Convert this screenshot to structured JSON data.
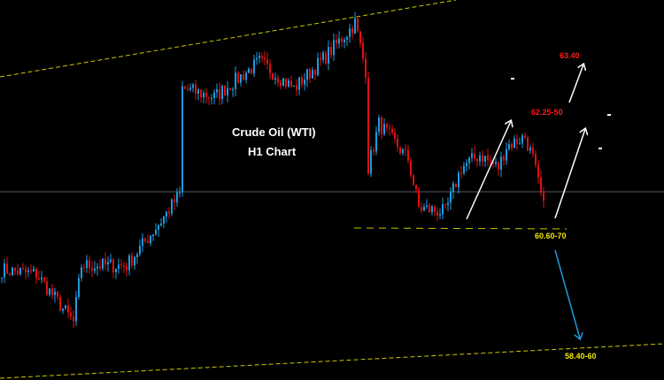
{
  "chart_data": {
    "type": "candlestick",
    "title": "Crude Oil (WTI)",
    "subtitle": "H1 Chart",
    "colors": {
      "up": "#1e9be0",
      "down": "#e01010",
      "background": "#000000",
      "channel": "#c8c800",
      "target_up": "#ffffff",
      "target_down": "#1e9be0",
      "label_up": "#ff1a1a",
      "label_support": "#f0e600"
    },
    "approx_close_path": [
      [
        0,
        59.99
      ],
      [
        13,
        59.92
      ],
      [
        27,
        59.14
      ],
      [
        30,
        60.06
      ],
      [
        47,
        60.06
      ],
      [
        60,
        60.78
      ],
      [
        67,
        61.21
      ],
      [
        68,
        62.92
      ],
      [
        80,
        62.78
      ],
      [
        97,
        63.35
      ],
      [
        110,
        62.92
      ],
      [
        120,
        63.35
      ],
      [
        132,
        63.92
      ],
      [
        133,
        63.99
      ],
      [
        137,
        63.21
      ],
      [
        138,
        61.64
      ],
      [
        142,
        62.35
      ],
      [
        153,
        61.78
      ],
      [
        157,
        60.99
      ],
      [
        167,
        60.92
      ],
      [
        173,
        61.64
      ],
      [
        180,
        61.85
      ],
      [
        187,
        61.64
      ],
      [
        190,
        61.99
      ],
      [
        197,
        62.14
      ],
      [
        200,
        61.78
      ],
      [
        204,
        60.99
      ]
    ],
    "support_level": 60.65,
    "annotations": [
      {
        "text": "63.40",
        "kind": "target"
      },
      {
        "text": "62.25-50",
        "kind": "target"
      },
      {
        "text": "60.60-70",
        "kind": "support"
      },
      {
        "text": "58.40-60",
        "kind": "downside-target"
      }
    ],
    "grid": false,
    "axes_visible": false
  }
}
